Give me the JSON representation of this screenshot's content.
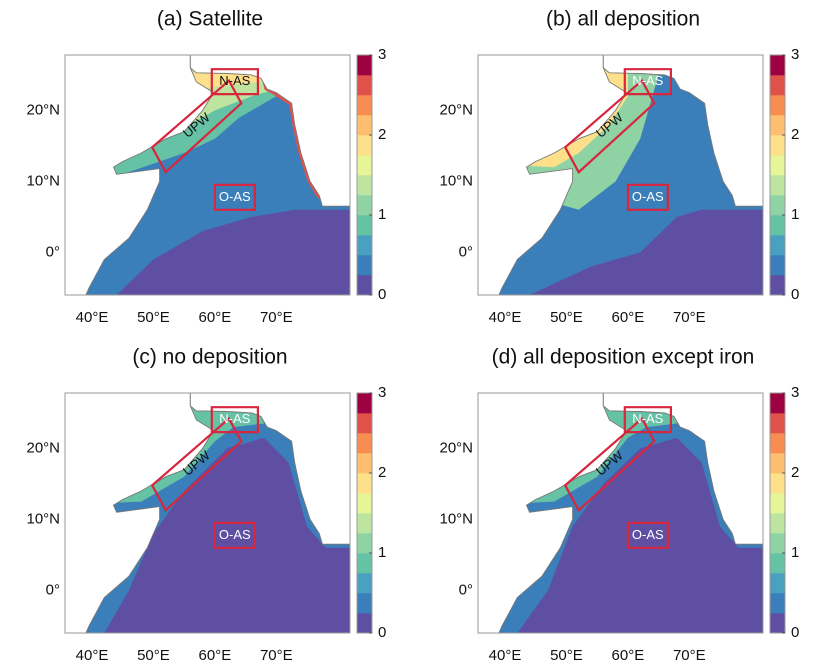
{
  "panels": [
    {
      "title": "(a) Satellite",
      "regions": [
        "N-AS",
        "UPW",
        "O-AS"
      ]
    },
    {
      "title": "(b) all deposition",
      "regions": [
        "N-AS",
        "UPW",
        "O-AS"
      ]
    },
    {
      "title": "(c) no deposition",
      "regions": [
        "N-AS",
        "UPW",
        "O-AS"
      ]
    },
    {
      "title": "(d) all deposition except iron",
      "regions": [
        "N-AS",
        "UPW",
        "O-AS"
      ]
    }
  ],
  "xticks": [
    "40°E",
    "50°E",
    "60°E",
    "70°E"
  ],
  "yticks": [
    "20°N",
    "10°N",
    "0°"
  ],
  "colorbar": {
    "ticks": [
      0,
      1,
      2,
      3
    ],
    "colors": [
      "#5e4fa2",
      "#3b7fba",
      "#4aa0c0",
      "#66c2a5",
      "#8fd2a4",
      "#bde5a0",
      "#e6f598",
      "#fee08b",
      "#fdbe6f",
      "#f88d52",
      "#e0514a",
      "#9e0142"
    ]
  }
}
